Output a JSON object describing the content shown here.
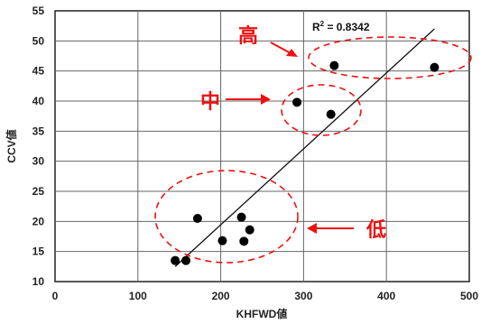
{
  "chart_data": {
    "type": "scatter",
    "xlabel": "KHFWD値",
    "ylabel": "CCV値",
    "xlim": [
      0,
      500
    ],
    "ylim": [
      10,
      55
    ],
    "x_ticks": [
      0,
      100,
      200,
      300,
      400,
      500
    ],
    "y_ticks": [
      10,
      15,
      20,
      25,
      30,
      35,
      40,
      45,
      50,
      55
    ],
    "grid": true,
    "points": [
      {
        "x": 145,
        "y": 13.5
      },
      {
        "x": 158,
        "y": 13.5
      },
      {
        "x": 172,
        "y": 20.5
      },
      {
        "x": 202,
        "y": 16.8
      },
      {
        "x": 225,
        "y": 20.7
      },
      {
        "x": 228,
        "y": 16.7
      },
      {
        "x": 235,
        "y": 18.6
      },
      {
        "x": 292,
        "y": 39.8
      },
      {
        "x": 333,
        "y": 37.8
      },
      {
        "x": 337,
        "y": 45.9
      },
      {
        "x": 458,
        "y": 45.6
      }
    ],
    "trendline": {
      "x1": 145,
      "y1": 12.5,
      "x2": 458,
      "y2": 52.0
    },
    "r2_label": "R",
    "r2_sup": "2",
    "r2_value": " = 0.8342",
    "annotations": [
      {
        "text": "高",
        "level": "high"
      },
      {
        "text": "中",
        "level": "mid"
      },
      {
        "text": "低",
        "level": "low"
      }
    ],
    "colors": {
      "points": "#000000",
      "annotation": "#ee1111",
      "grid": "#666666"
    }
  }
}
